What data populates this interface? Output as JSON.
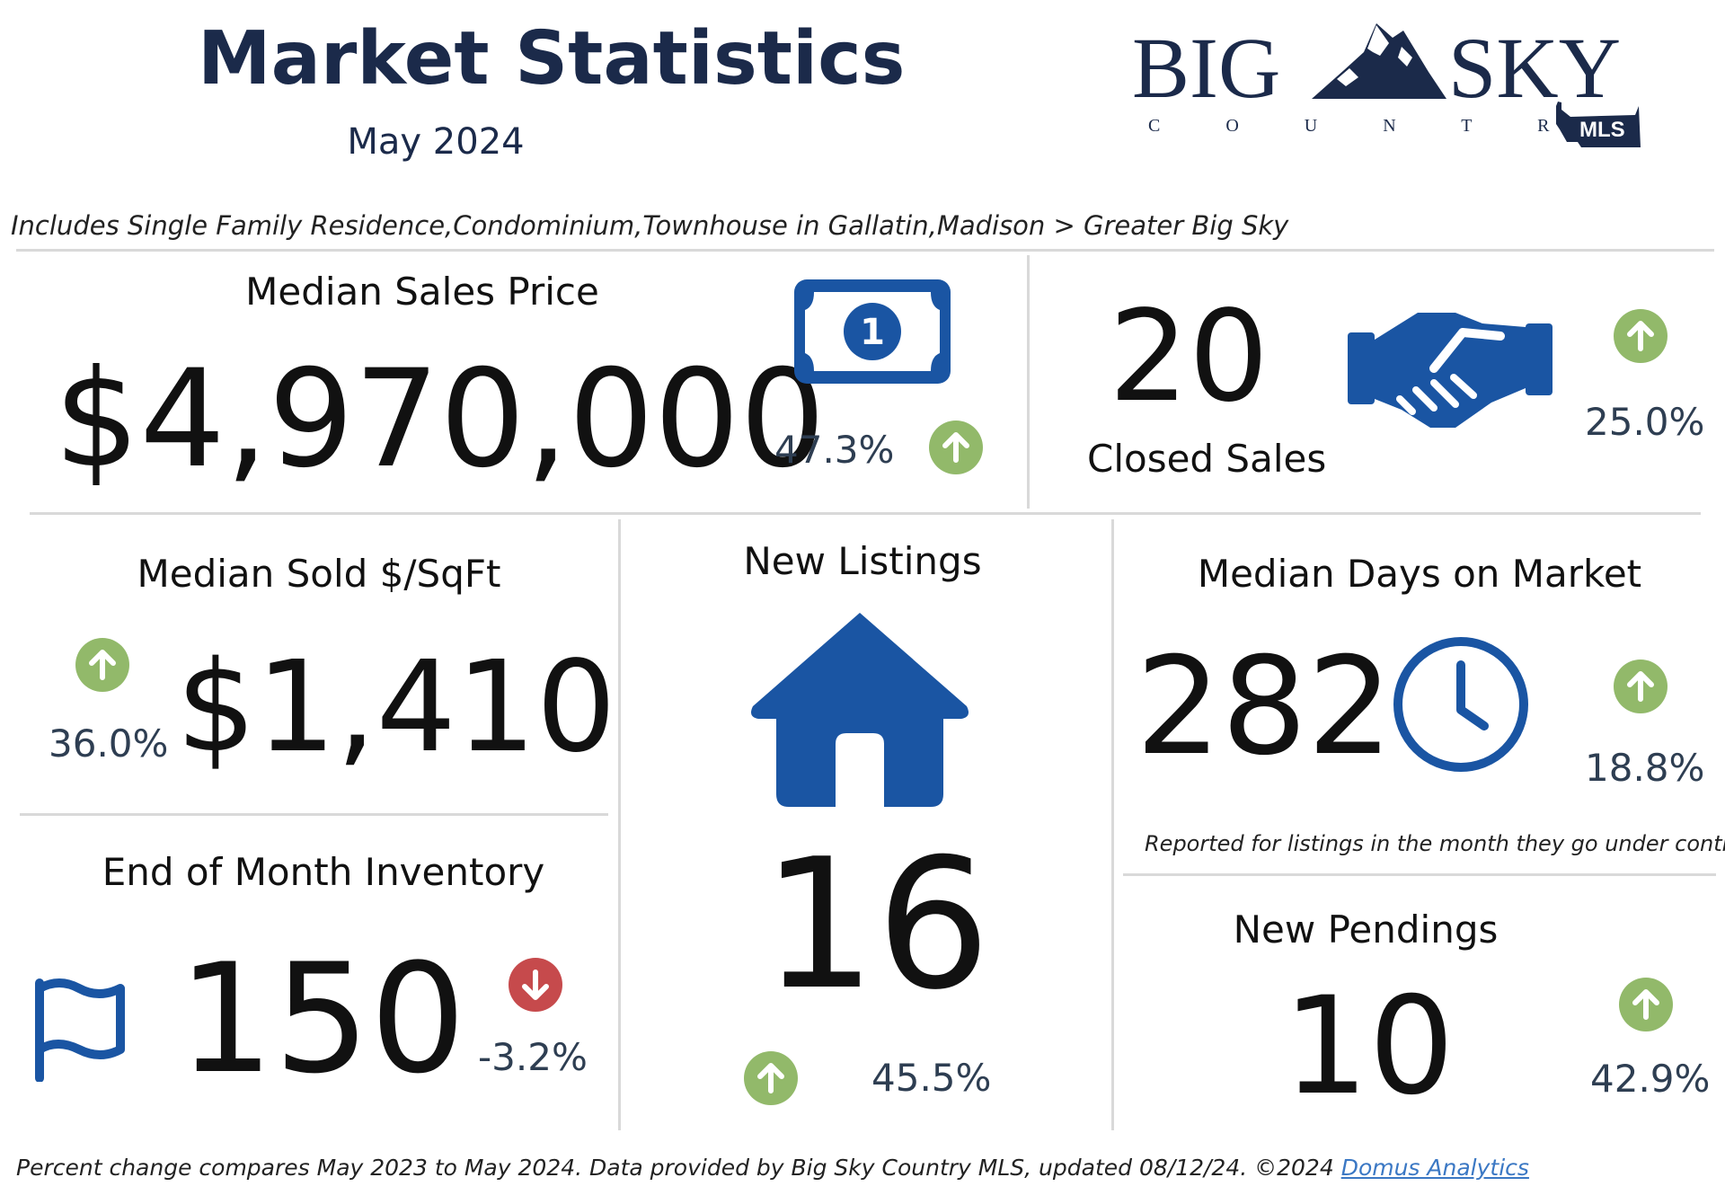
{
  "header": {
    "title": "Market Statistics",
    "subtitle": "May 2024",
    "filter_text": "Includes Single Family Residence,Condominium,Townhouse in Gallatin,Madison > Greater Big Sky"
  },
  "logo": {
    "word_left": "BIG",
    "word_right": "SKY",
    "sub": "C O U N T R Y",
    "badge": "MLS"
  },
  "metrics": {
    "median_price": {
      "label": "Median Sales Price",
      "value": "$4,970,000",
      "change": "47.3%",
      "direction": "up"
    },
    "closed_sales": {
      "label": "Closed Sales",
      "value": "20",
      "change": "25.0%",
      "direction": "up"
    },
    "sold_sqft": {
      "label": "Median Sold $/SqFt",
      "value": "$1,410",
      "change": "36.0%",
      "direction": "up"
    },
    "new_listings": {
      "label": "New Listings",
      "value": "16",
      "change": "45.5%",
      "direction": "up"
    },
    "days_on_market": {
      "label": "Median Days on Market",
      "value": "282",
      "change": "18.8%",
      "direction": "up",
      "note": "Reported for listings in the month they go under contract."
    },
    "inventory": {
      "label": "End of Month Inventory",
      "value": "150",
      "change": "-3.2%",
      "direction": "down"
    },
    "new_pendings": {
      "label": "New Pendings",
      "value": "10",
      "change": "42.9%",
      "direction": "up"
    }
  },
  "footer": {
    "text": "Percent change compares May 2023 to May 2024.  Data provided by Big Sky Country MLS, updated 08/12/24. ©2024 ",
    "link_text": "Domus Analytics"
  },
  "colors": {
    "navy": "#1b2a4a",
    "icon_blue": "#1a55a3",
    "up_green": "#92b96a",
    "down_red": "#c64a4c",
    "pct_text": "#2e3e52"
  },
  "icons": [
    "money-bill-icon",
    "handshake-icon",
    "house-icon",
    "clock-icon",
    "flag-icon",
    "arrow-up-icon",
    "arrow-down-icon"
  ]
}
